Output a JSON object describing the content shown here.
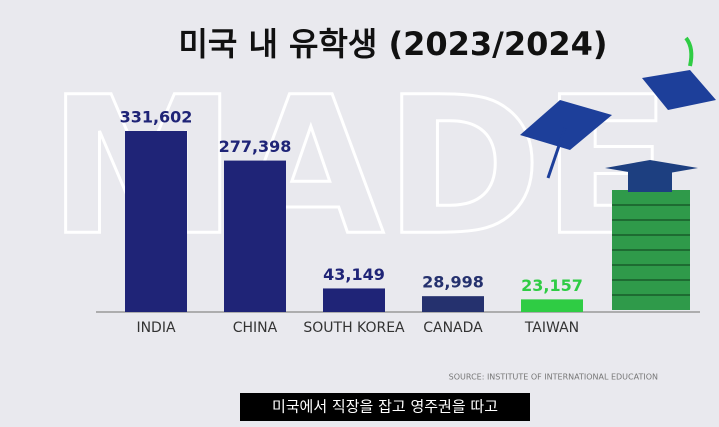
{
  "chart_data": {
    "type": "bar",
    "title": "미국 내 유학생 (2023/2024)",
    "categories": [
      "INDIA",
      "CHINA",
      "SOUTH KOREA",
      "CANADA",
      "TAIWAN"
    ],
    "values": [
      331602,
      277398,
      43149,
      28998,
      23157
    ],
    "value_labels": [
      "331,602",
      "277,398",
      "43,149",
      "28,998",
      "23,157"
    ],
    "colors": [
      "#1f2477",
      "#1f2477",
      "#1f2477",
      "#25316e",
      "#2fcc44"
    ],
    "source": "SOURCE: INSTITUTE OF INTERNATIONAL EDUCATION"
  },
  "background_text": "MADE",
  "caption": "미국에서 직장을 잡고 영주권을 따고"
}
